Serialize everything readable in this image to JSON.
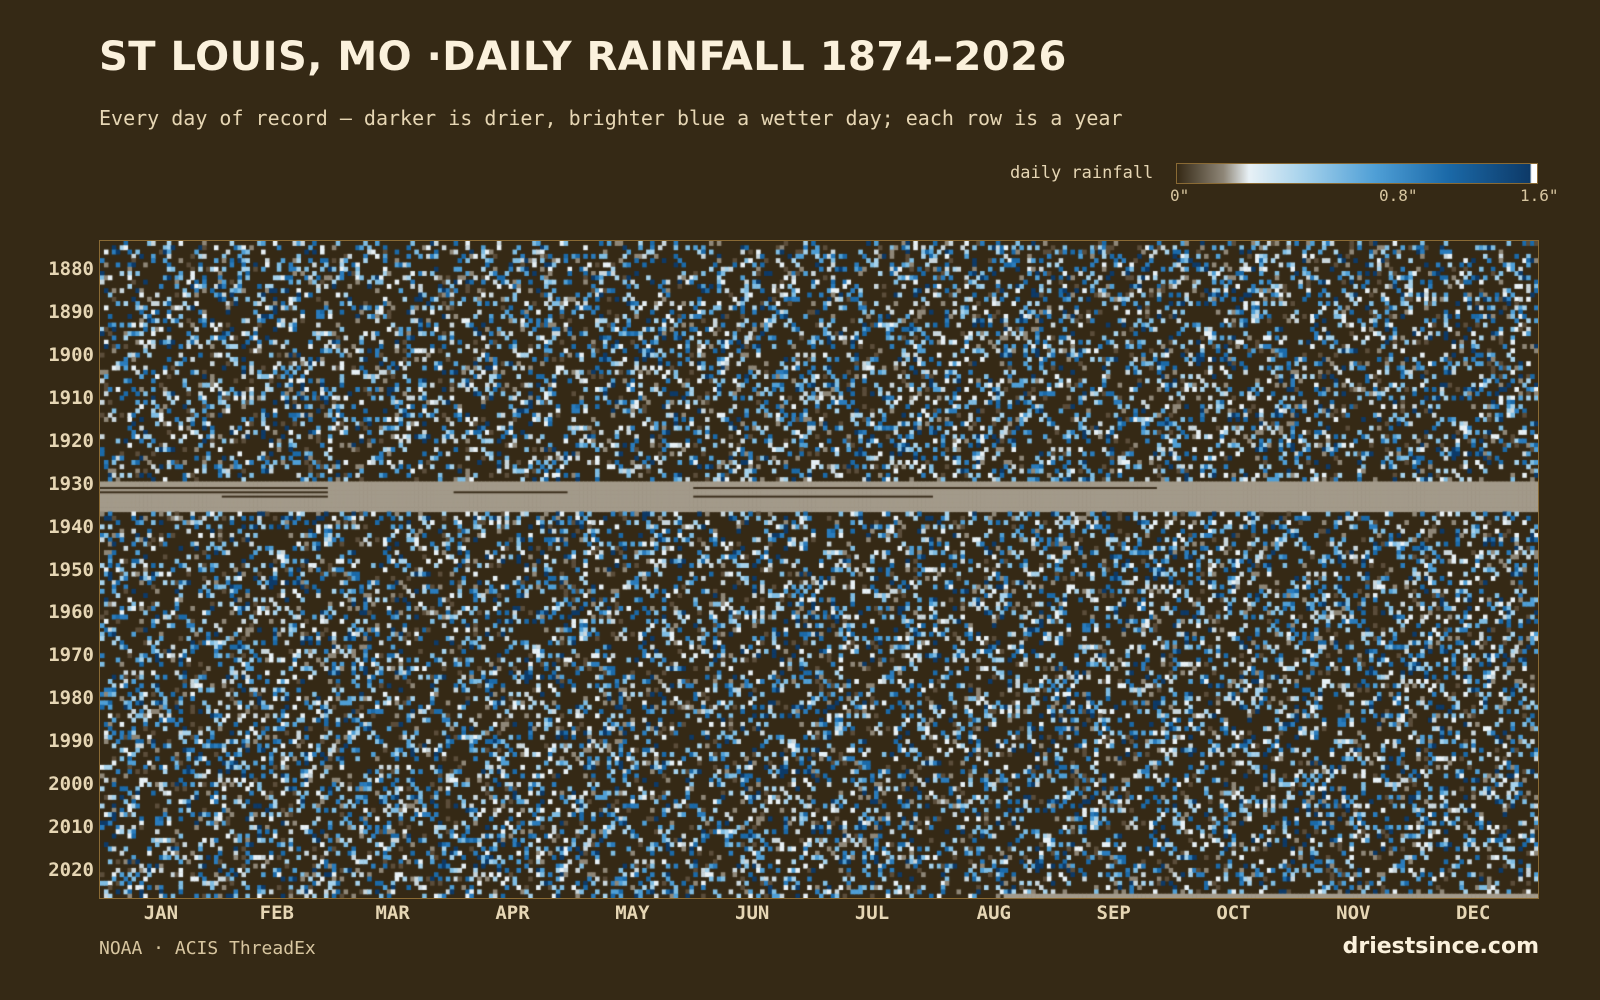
{
  "title": "ST LOUIS, MO ·DAILY RAINFALL 1874–2026",
  "subtitle": "Every day of record — darker is drier, brighter blue a wetter day; each row is a year",
  "source": "NOAA · ACIS ThreadEx",
  "brand": "driestsince.com",
  "legend": {
    "label": "daily rainfall",
    "ticks": [
      "0\"",
      "0.8\"",
      "1.6\""
    ],
    "range": [
      0,
      1.6
    ],
    "colors": [
      "#352915",
      "#8f8778",
      "#e8f1f6",
      "#a6d2ec",
      "#4f9fd6",
      "#1b6aa9",
      "#0d3a68"
    ]
  },
  "colors": {
    "background": "#352915",
    "missing": "#a39a8a",
    "frame": "#8a6a34",
    "text": "#e6d6b4"
  },
  "chart_data": {
    "type": "heatmap",
    "x_label": "",
    "y_label": "",
    "x_categories": [
      "JAN",
      "FEB",
      "MAR",
      "APR",
      "MAY",
      "JUN",
      "JUL",
      "AUG",
      "SEP",
      "OCT",
      "NOV",
      "DEC"
    ],
    "y_ticks": [
      "1880",
      "1890",
      "1900",
      "1910",
      "1920",
      "1930",
      "1940",
      "1950",
      "1960",
      "1970",
      "1980",
      "1990",
      "2000",
      "2010",
      "2020"
    ],
    "y_range": [
      1874,
      2026
    ],
    "x_range": [
      1,
      366
    ],
    "value_range": [
      0,
      1.6
    ],
    "units": "inches",
    "missing_data": [
      {
        "years": [
          1930,
          1936
        ],
        "note": "mostly missing record, gray band"
      },
      {
        "years": [
          2026,
          2026
        ],
        "days_from": 231,
        "days_to": 366
      }
    ]
  }
}
